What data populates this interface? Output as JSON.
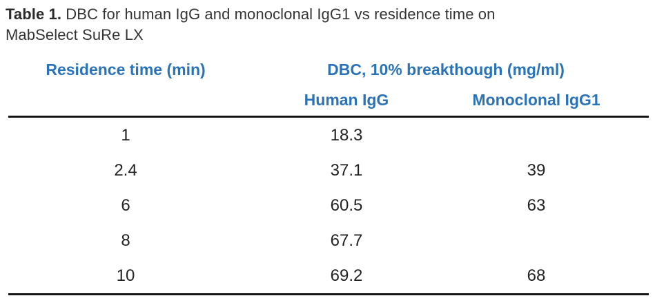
{
  "caption": {
    "label": "Table 1.",
    "text": " DBC for human IgG and monoclonal IgG1 vs residence time on MabSelect SuRe LX"
  },
  "table": {
    "headers": {
      "residence_time": "Residence time (min)",
      "dbc_group": "DBC, 10% breakthough (mg/ml)",
      "human_igg": "Human IgG",
      "monoclonal_igg1": "Monoclonal IgG1"
    },
    "rows": [
      {
        "residence_time": "1",
        "human_igg": "18.3",
        "monoclonal_igg1": ""
      },
      {
        "residence_time": "2.4",
        "human_igg": "37.1",
        "monoclonal_igg1": "39"
      },
      {
        "residence_time": "6",
        "human_igg": "60.5",
        "monoclonal_igg1": "63"
      },
      {
        "residence_time": "8",
        "human_igg": "67.7",
        "monoclonal_igg1": ""
      },
      {
        "residence_time": "10",
        "human_igg": "69.2",
        "monoclonal_igg1": "68"
      }
    ]
  },
  "colors": {
    "header_blue": "#2b73b8",
    "body_text": "#222222",
    "caption_text": "#343434",
    "rule": "#151515",
    "background": "#ffffff"
  }
}
